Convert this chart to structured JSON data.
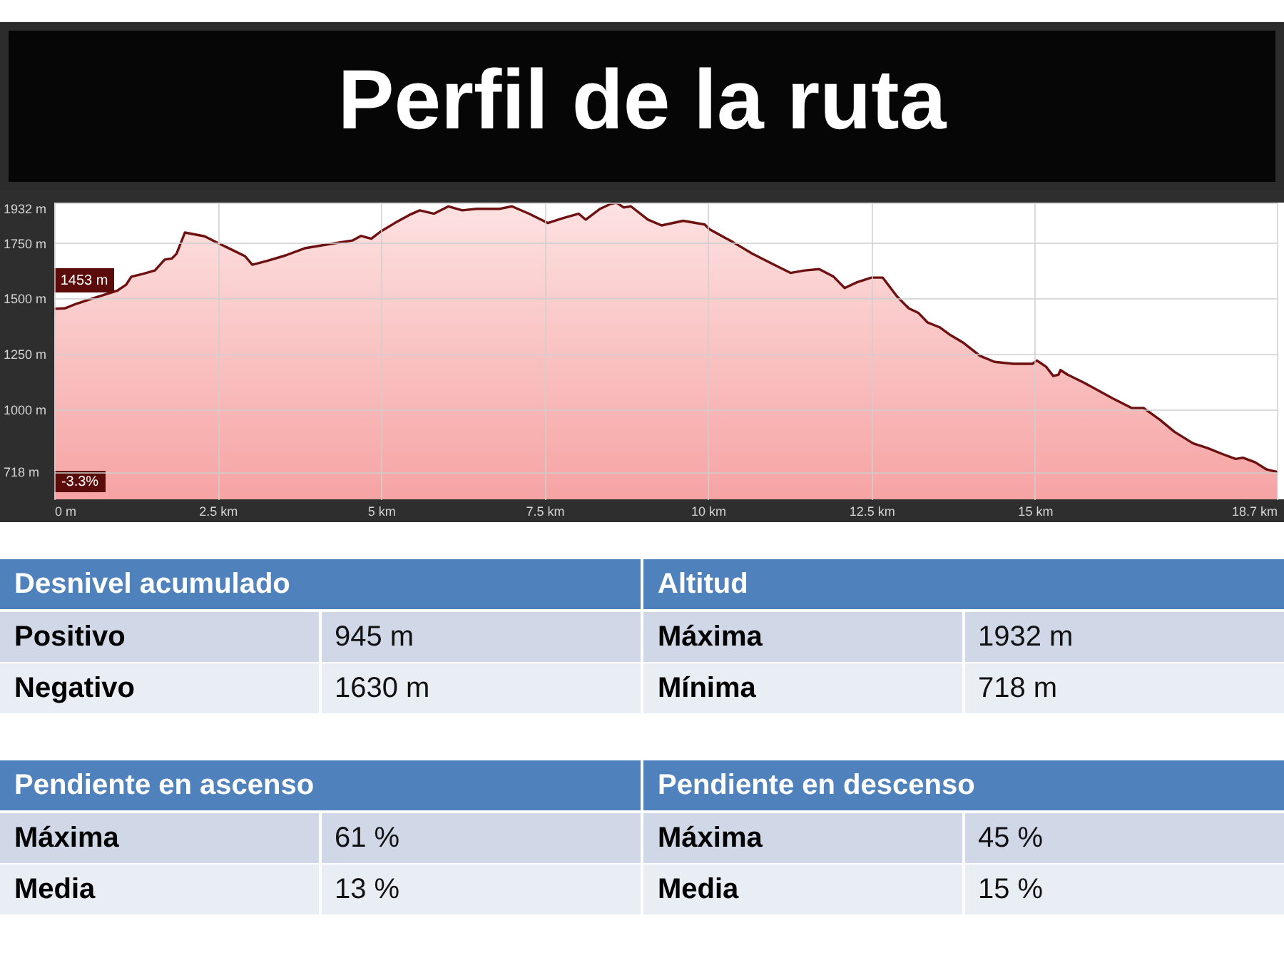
{
  "chart_data": [
    {
      "type": "area",
      "title": "Perfil de la ruta",
      "color": "#6e1010",
      "x": [
        0,
        0.16,
        0.34,
        0.63,
        0.96,
        1.1,
        1.18,
        1.36,
        1.54,
        1.69,
        1.8,
        1.87,
        2.0,
        2.3,
        2.5,
        2.74,
        2.92,
        3.03,
        3.25,
        3.54,
        3.83,
        4.27,
        4.56,
        4.69,
        4.85,
        4.99,
        5.21,
        5.43,
        5.59,
        5.81,
        6.03,
        6.24,
        6.46,
        6.82,
        7.0,
        7.26,
        7.55,
        7.77,
        8.02,
        8.13,
        8.35,
        8.5,
        8.6,
        8.71,
        8.82,
        9.08,
        9.29,
        9.62,
        9.95,
        10.02,
        10.38,
        10.68,
        10.97,
        11.26,
        11.48,
        11.7,
        11.92,
        12.09,
        12.28,
        12.5,
        12.67,
        12.89,
        13.07,
        13.22,
        13.36,
        13.54,
        13.69,
        13.91,
        14.16,
        14.38,
        14.67,
        14.96,
        15.03,
        15.17,
        15.28,
        15.36,
        15.39,
        15.5,
        15.75,
        16.19,
        16.48,
        16.66,
        16.91,
        17.13,
        17.42,
        17.64,
        17.86,
        18.07,
        18.18,
        18.37,
        18.54,
        18.7
      ],
      "values": [
        1453,
        1455,
        1476,
        1504,
        1534,
        1562,
        1598,
        1611,
        1626,
        1675,
        1680,
        1701,
        1797,
        1780,
        1750,
        1716,
        1690,
        1652,
        1669,
        1694,
        1726,
        1748,
        1761,
        1782,
        1769,
        1801,
        1840,
        1876,
        1897,
        1882,
        1915,
        1897,
        1904,
        1904,
        1915,
        1882,
        1840,
        1861,
        1882,
        1855,
        1904,
        1925,
        1932,
        1910,
        1915,
        1855,
        1829,
        1850,
        1833,
        1812,
        1754,
        1701,
        1658,
        1615,
        1626,
        1632,
        1598,
        1547,
        1573,
        1594,
        1594,
        1509,
        1455,
        1434,
        1391,
        1370,
        1338,
        1299,
        1241,
        1214,
        1205,
        1205,
        1220,
        1192,
        1150,
        1156,
        1177,
        1156,
        1120,
        1049,
        1006,
        1006,
        953,
        899,
        846,
        825,
        799,
        776,
        782,
        761,
        729,
        718
      ],
      "xlim": [
        0,
        18.7
      ],
      "xticks": [
        {
          "value": 0,
          "label": "0 m"
        },
        {
          "value": 2.5,
          "label": "2.5 km"
        },
        {
          "value": 5,
          "label": "5 km"
        },
        {
          "value": 7.5,
          "label": "7.5 km"
        },
        {
          "value": 10,
          "label": "10 km"
        },
        {
          "value": 12.5,
          "label": "12.5 km"
        },
        {
          "value": 15,
          "label": "15 km"
        },
        {
          "value": 18.7,
          "label": "18.7 km"
        }
      ],
      "ylim": [
        594,
        1932
      ],
      "yticks": [
        {
          "value": 718,
          "label": "718 m"
        },
        {
          "value": 1000,
          "label": "1000 m"
        },
        {
          "value": 1250,
          "label": "1250 m"
        },
        {
          "value": 1500,
          "label": "1500 m"
        },
        {
          "value": 1750,
          "label": "1750 m"
        },
        {
          "value": 1932,
          "label": "1932 m"
        }
      ],
      "grid": true,
      "annotations": [
        {
          "text": "1453 m",
          "x": 0,
          "y": 1453
        },
        "-3.3%"
      ]
    },
    {
      "type": "other",
      "title": "Desnivel acumulado",
      "annotations": [
        "Positivo",
        "945 m",
        "Negativo",
        "1630 m"
      ]
    },
    {
      "type": "other",
      "title": "Altitud",
      "annotations": [
        "Máxima",
        "1932 m",
        "Mínima",
        "718 m"
      ]
    },
    {
      "type": "other",
      "title": "Pendiente en ascenso",
      "annotations": [
        "Máxima",
        "61 %",
        "Media",
        "13 %"
      ]
    },
    {
      "type": "other",
      "title": "Pendiente en descenso",
      "annotations": [
        "Máxima",
        "45 %",
        "Media",
        "15 %"
      ]
    }
  ]
}
